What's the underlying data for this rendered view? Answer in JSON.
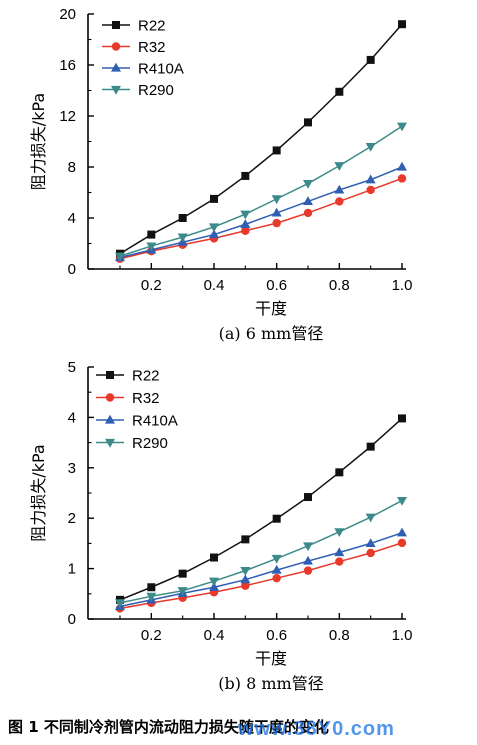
{
  "caption": "图 1 不同制冷剂管内流动阻力损失随干度的变化",
  "watermark": "www.38Y0.com",
  "colors": {
    "R22": "#111111",
    "R32": "#e8392a",
    "R410A": "#2f5fb3",
    "R290": "#3d8a8a"
  },
  "chart_data": [
    {
      "type": "line",
      "subtitle": "(a) 6 mm管径",
      "xlabel": "干度",
      "ylabel": "阻力损失/kPa",
      "xlim": [
        0.1,
        1.0
      ],
      "ylim": [
        0,
        20
      ],
      "xticks": [
        "0.2",
        "0.4",
        "0.6",
        "0.8",
        "1.0"
      ],
      "yticks": [
        "0",
        "4",
        "8",
        "12",
        "16",
        "20"
      ],
      "legend_position": "top-left",
      "x": [
        0.1,
        0.2,
        0.3,
        0.4,
        0.5,
        0.6,
        0.7,
        0.8,
        0.9,
        1.0
      ],
      "series": [
        {
          "name": "R22",
          "marker": "square",
          "values": [
            1.2,
            2.7,
            4.0,
            5.5,
            7.3,
            9.3,
            11.5,
            13.9,
            16.4,
            19.2
          ]
        },
        {
          "name": "R32",
          "marker": "circle",
          "values": [
            0.8,
            1.4,
            1.9,
            2.4,
            3.0,
            3.6,
            4.4,
            5.3,
            6.2,
            7.1
          ]
        },
        {
          "name": "R410A",
          "marker": "triangle-up",
          "values": [
            0.9,
            1.5,
            2.1,
            2.7,
            3.5,
            4.4,
            5.3,
            6.2,
            7.0,
            8.0
          ]
        },
        {
          "name": "R290",
          "marker": "triangle-down",
          "values": [
            1.0,
            1.8,
            2.5,
            3.3,
            4.3,
            5.5,
            6.7,
            8.1,
            9.6,
            11.2
          ]
        }
      ]
    },
    {
      "type": "line",
      "subtitle": "(b) 8 mm管径",
      "xlabel": "干度",
      "ylabel": "阻力损失/kPa",
      "xlim": [
        0.1,
        1.0
      ],
      "ylim": [
        0,
        5
      ],
      "xticks": [
        "0.2",
        "0.4",
        "0.6",
        "0.8",
        "1.0"
      ],
      "yticks": [
        "0",
        "1",
        "2",
        "3",
        "4",
        "5"
      ],
      "legend_position": "top-left",
      "x": [
        0.1,
        0.2,
        0.3,
        0.4,
        0.5,
        0.6,
        0.7,
        0.8,
        0.9,
        1.0
      ],
      "series": [
        {
          "name": "R22",
          "marker": "square",
          "values": [
            0.38,
            0.63,
            0.9,
            1.22,
            1.58,
            1.99,
            2.42,
            2.91,
            3.42,
            3.98
          ]
        },
        {
          "name": "R32",
          "marker": "circle",
          "values": [
            0.21,
            0.32,
            0.42,
            0.53,
            0.66,
            0.81,
            0.96,
            1.14,
            1.31,
            1.51
          ]
        },
        {
          "name": "R410A",
          "marker": "triangle-up",
          "values": [
            0.25,
            0.38,
            0.51,
            0.63,
            0.78,
            0.97,
            1.15,
            1.32,
            1.5,
            1.71
          ]
        },
        {
          "name": "R290",
          "marker": "triangle-down",
          "values": [
            0.32,
            0.45,
            0.56,
            0.75,
            0.96,
            1.2,
            1.45,
            1.73,
            2.02,
            2.35
          ]
        }
      ]
    }
  ]
}
